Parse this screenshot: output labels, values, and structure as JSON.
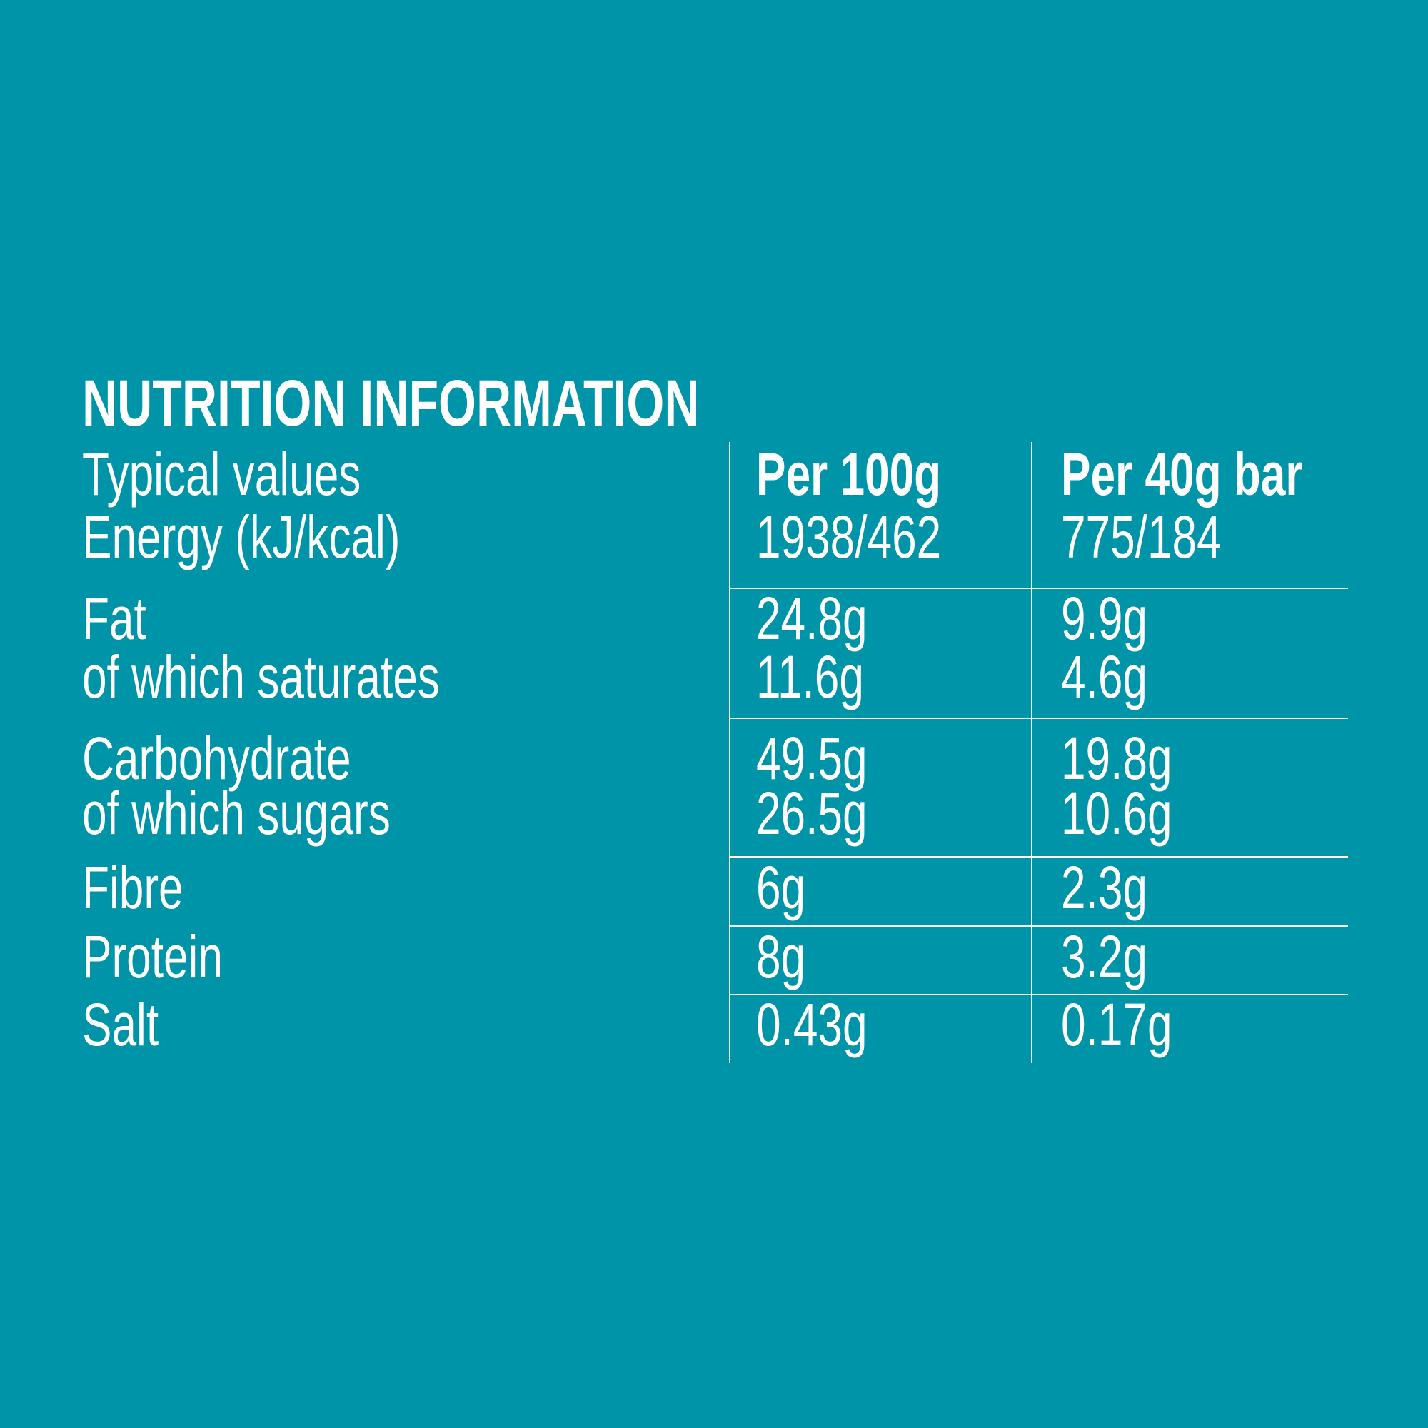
{
  "header": {
    "title": "NUTRITION INFORMATION"
  },
  "table": {
    "columns": [
      "Typical values",
      "Per 100g",
      "Per 40g bar"
    ],
    "rows": [
      [
        "Energy (kJ/kcal)",
        "1938/462",
        "775/184"
      ],
      [
        "Fat",
        "24.8g",
        "9.9g"
      ],
      [
        "of which saturates",
        "11.6g",
        "4.6g"
      ],
      [
        "Carbohydrate",
        "49.5g",
        "19.8g"
      ],
      [
        "of which sugars",
        "26.5g",
        "10.6g"
      ],
      [
        "Fibre",
        "6g",
        "2.3g"
      ],
      [
        "Protein",
        "8g",
        "3.2g"
      ],
      [
        "Salt",
        "0.43g",
        "0.17g"
      ]
    ]
  }
}
